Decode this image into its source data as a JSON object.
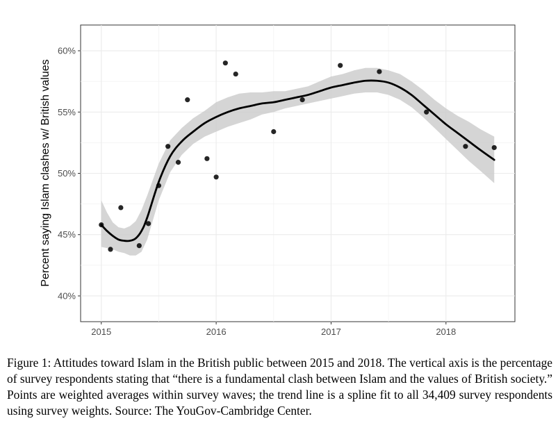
{
  "chart_data": {
    "type": "scatter",
    "title": "",
    "xlabel": "",
    "ylabel": "Percent saying Islam clashes w/ British values",
    "xlim": [
      2014.82,
      2018.6
    ],
    "ylim": [
      37.9,
      62.1
    ],
    "x_ticks": [
      2015,
      2016,
      2017,
      2018
    ],
    "x_tick_labels": [
      "2015",
      "2016",
      "2017",
      "2018"
    ],
    "y_ticks": [
      40,
      45,
      50,
      55,
      60
    ],
    "y_tick_labels": [
      "40%",
      "45%",
      "50%",
      "55%",
      "60%"
    ],
    "grid": true,
    "points": {
      "name": "Weighted averages within survey waves",
      "x": [
        2015.0,
        2015.08,
        2015.17,
        2015.33,
        2015.41,
        2015.5,
        2015.58,
        2015.67,
        2015.75,
        2015.92,
        2016.0,
        2016.08,
        2016.17,
        2016.5,
        2016.75,
        2017.08,
        2017.42,
        2017.83,
        2018.17,
        2018.42
      ],
      "y": [
        45.8,
        43.8,
        47.2,
        44.1,
        45.9,
        49.0,
        52.2,
        50.9,
        56.0,
        51.2,
        49.7,
        59.0,
        58.1,
        53.4,
        56.0,
        58.8,
        58.3,
        55.0,
        52.2,
        52.1
      ]
    },
    "trend": {
      "name": "Spline fit",
      "x": [
        2015.0,
        2015.05,
        2015.1,
        2015.15,
        2015.2,
        2015.25,
        2015.3,
        2015.35,
        2015.4,
        2015.5,
        2015.6,
        2015.7,
        2015.8,
        2015.9,
        2016.0,
        2016.1,
        2016.2,
        2016.3,
        2016.4,
        2016.5,
        2016.6,
        2016.7,
        2016.8,
        2016.9,
        2017.0,
        2017.1,
        2017.2,
        2017.3,
        2017.4,
        2017.5,
        2017.6,
        2017.7,
        2017.8,
        2017.9,
        2018.0,
        2018.1,
        2018.2,
        2018.3,
        2018.42
      ],
      "y": [
        45.8,
        45.3,
        44.9,
        44.6,
        44.5,
        44.5,
        44.7,
        45.3,
        46.4,
        49.3,
        51.4,
        52.6,
        53.4,
        54.1,
        54.6,
        55.0,
        55.3,
        55.5,
        55.7,
        55.8,
        56.0,
        56.2,
        56.4,
        56.7,
        57.0,
        57.2,
        57.4,
        57.55,
        57.55,
        57.4,
        57.0,
        56.4,
        55.6,
        54.8,
        54.0,
        53.3,
        52.6,
        51.9,
        51.1
      ],
      "lower": [
        44.0,
        43.9,
        43.8,
        43.6,
        43.5,
        43.3,
        43.3,
        43.6,
        44.6,
        47.8,
        50.1,
        51.5,
        52.4,
        53.0,
        53.4,
        53.8,
        54.1,
        54.4,
        54.8,
        55.0,
        55.3,
        55.5,
        55.7,
        55.9,
        56.1,
        56.3,
        56.5,
        56.6,
        56.6,
        56.4,
        56.0,
        55.4,
        54.6,
        53.7,
        52.8,
        51.9,
        51.0,
        50.2,
        49.2
      ],
      "upper": [
        47.8,
        46.8,
        46.0,
        45.6,
        45.5,
        45.7,
        46.1,
        47.0,
        48.2,
        50.8,
        52.7,
        53.7,
        54.5,
        55.1,
        55.8,
        56.2,
        56.5,
        56.6,
        56.6,
        56.7,
        56.7,
        56.9,
        57.1,
        57.5,
        57.9,
        58.1,
        58.4,
        58.6,
        58.6,
        58.4,
        58.1,
        57.5,
        56.8,
        56.0,
        55.3,
        54.7,
        54.2,
        53.6,
        53.0
      ]
    }
  },
  "caption": "Figure 1: Attitudes toward Islam in the British public between 2015 and 2018. The vertical axis is the percentage of survey respondents stating that “there is a fundamental clash between Islam and the values of British society.” Points are weighted averages within survey waves; the trend line is a spline fit to all 34,409 survey respondents using survey weights. Source: The YouGov-Cambridge Center."
}
